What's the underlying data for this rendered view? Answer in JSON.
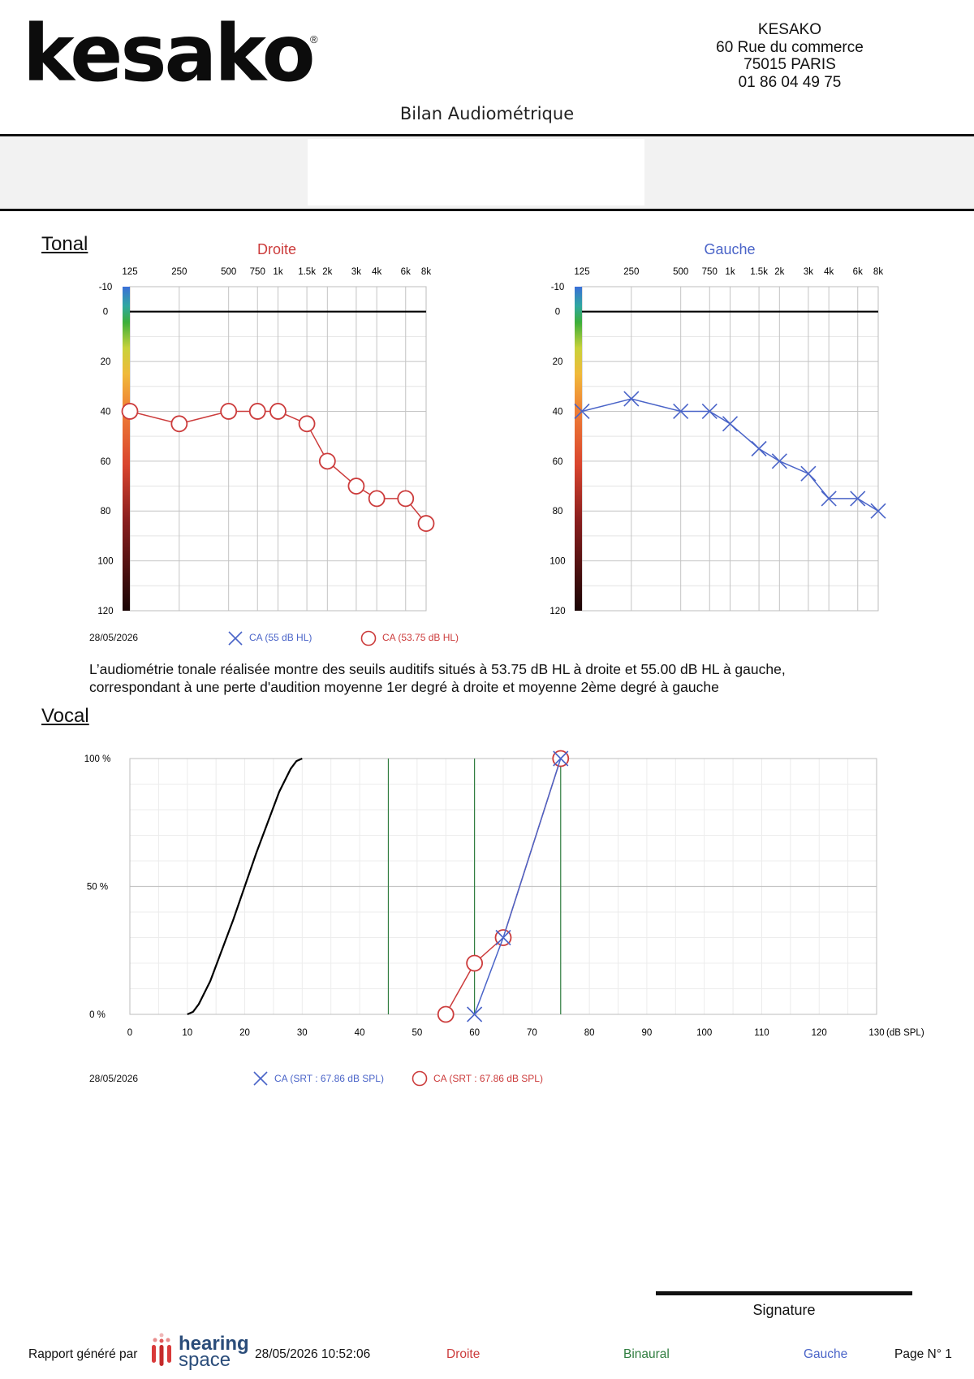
{
  "header": {
    "logo_text": "kesako",
    "logo_reg": "®",
    "company_name": "KESAKO",
    "address_line1": "60 Rue du commerce",
    "address_line2": "75015 PARIS",
    "phone": "01 86 04 49 75",
    "title": "Bilan Audiométrique"
  },
  "tonal": {
    "section_title": "Tonal",
    "date": "28/05/2026",
    "legend_left": "CA (55 dB HL)",
    "legend_right": "CA (53.75 dB HL)",
    "summary_line1": "L’audiométrie tonale réalisée montre des seuils auditifs situés à 53.75 dB HL à droite et 55.00 dB HL à gauche,",
    "summary_line2": "correspondant à une perte d'audition moyenne 1er degré à droite et moyenne 2ème degré à gauche"
  },
  "vocal": {
    "section_title": "Vocal",
    "date": "28/05/2026",
    "legend_left": "CA (SRT : 67.86 dB SPL)",
    "legend_right": "CA (SRT : 67.86 dB SPL)"
  },
  "signature": {
    "label": "Signature"
  },
  "footer": {
    "generated_by": "Rapport généré par",
    "brand_line1": "hearing",
    "brand_line2": "space",
    "datetime": "28/05/2026 10:52:06",
    "right_label": "Droite",
    "binaural_label": "Binaural",
    "left_label": "Gauche",
    "page_label": "Page N° 1"
  },
  "colors": {
    "right_ear": "#cc3c3c",
    "left_ear": "#4a64c8",
    "binaural": "#2f7d3f",
    "grid": "#c8c8c8"
  },
  "chart_data": [
    {
      "type": "line",
      "name": "tonal-right",
      "title": "Droite",
      "x_tick_labels": [
        "125",
        "250",
        "500",
        "750",
        "1k",
        "1.5k",
        "2k",
        "3k",
        "4k",
        "6k",
        "8k"
      ],
      "y_tick_labels": [
        "-10",
        "0",
        "20",
        "40",
        "60",
        "80",
        "100",
        "120"
      ],
      "x_scale": "log",
      "x_unit": "Hz",
      "y_unit": "dB HL",
      "ylim": [
        -10,
        120
      ],
      "y_inverted": true,
      "series": [
        {
          "marker": "circle",
          "color": "#cc3c3c",
          "x": [
            125,
            250,
            500,
            750,
            1000,
            1500,
            2000,
            3000,
            4000,
            6000,
            8000
          ],
          "y": [
            40,
            45,
            40,
            40,
            40,
            45,
            60,
            70,
            75,
            75,
            85
          ]
        }
      ]
    },
    {
      "type": "line",
      "name": "tonal-left",
      "title": "Gauche",
      "x_tick_labels": [
        "125",
        "250",
        "500",
        "750",
        "1k",
        "1.5k",
        "2k",
        "3k",
        "4k",
        "6k",
        "8k"
      ],
      "y_tick_labels": [
        "-10",
        "0",
        "20",
        "40",
        "60",
        "80",
        "100",
        "120"
      ],
      "x_scale": "log",
      "x_unit": "Hz",
      "y_unit": "dB HL",
      "ylim": [
        -10,
        120
      ],
      "y_inverted": true,
      "series": [
        {
          "marker": "cross",
          "color": "#4a64c8",
          "x": [
            125,
            250,
            500,
            750,
            1000,
            1500,
            2000,
            3000,
            4000,
            6000,
            8000
          ],
          "y": [
            40,
            35,
            40,
            40,
            45,
            55,
            60,
            65,
            75,
            75,
            80
          ]
        }
      ]
    },
    {
      "type": "line",
      "name": "vocal",
      "x_ticks": [
        0,
        10,
        20,
        30,
        40,
        50,
        60,
        70,
        80,
        90,
        100,
        110,
        120,
        130
      ],
      "x_unit_label": "(dB SPL)",
      "y_tick_labels": [
        "100 %",
        "50 %",
        "0 %"
      ],
      "xlim": [
        0,
        130
      ],
      "ylim": [
        0,
        100
      ],
      "reference_lines_x": [
        45,
        60,
        75
      ],
      "series": [
        {
          "marker": "none",
          "color": "#000000",
          "x": [
            10,
            11,
            12,
            14,
            16,
            18,
            20,
            22,
            24,
            26,
            28,
            29,
            30
          ],
          "y": [
            0,
            1,
            4,
            13,
            25,
            37,
            50,
            63,
            75,
            87,
            96,
            99,
            100
          ]
        },
        {
          "marker": "circle",
          "color": "#cc3c3c",
          "x": [
            55,
            60,
            65,
            75
          ],
          "y": [
            0,
            20,
            30,
            100
          ]
        },
        {
          "marker": "cross",
          "color": "#4a64c8",
          "x": [
            60,
            65,
            75
          ],
          "y": [
            0,
            30,
            100
          ]
        }
      ]
    }
  ]
}
